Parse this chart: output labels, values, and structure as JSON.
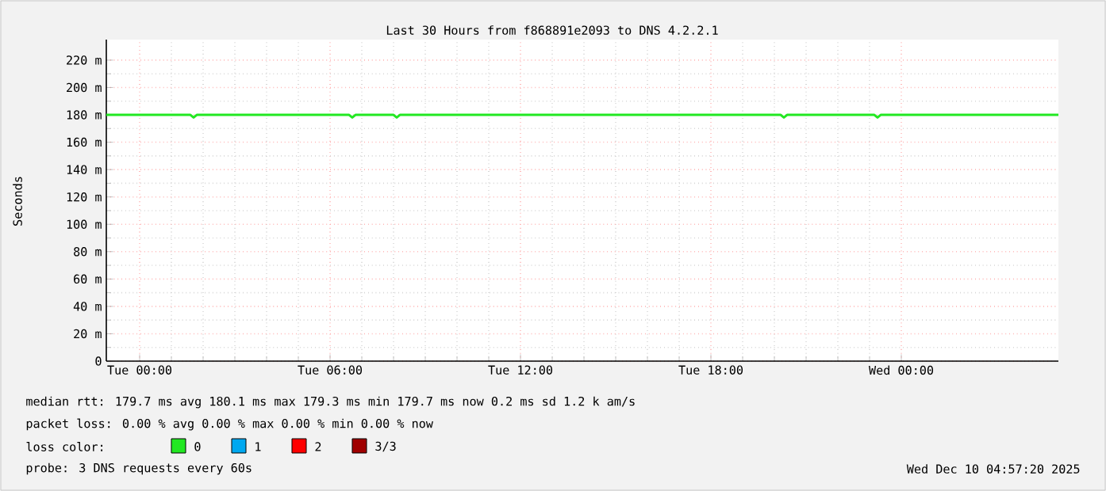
{
  "chart_data": {
    "type": "line",
    "title": "Last 30 Hours from f868891e2093 to DNS 4.2.2.1",
    "ylabel": "Seconds",
    "legend_title": "loss color:",
    "legend": "bottom",
    "grid": true,
    "xlim": [
      "2025-12-08T22:57",
      "2025-12-10T04:57"
    ],
    "xticks": [
      {
        "value": "2025-12-09T00:00",
        "label": "Tue 00:00"
      },
      {
        "value": "2025-12-09T06:00",
        "label": "Tue 06:00"
      },
      {
        "value": "2025-12-09T12:00",
        "label": "Tue 12:00"
      },
      {
        "value": "2025-12-09T18:00",
        "label": "Tue 18:00"
      },
      {
        "value": "2025-12-10T00:00",
        "label": "Wed 00:00"
      }
    ],
    "ylim": [
      0,
      235
    ],
    "yticks": [
      {
        "value": 0,
        "label": "0"
      },
      {
        "value": 20,
        "label": "20 m"
      },
      {
        "value": 40,
        "label": "40 m"
      },
      {
        "value": 60,
        "label": "60 m"
      },
      {
        "value": 80,
        "label": "80 m"
      },
      {
        "value": 100,
        "label": "100 m"
      },
      {
        "value": 120,
        "label": "120 m"
      },
      {
        "value": 140,
        "label": "140 m"
      },
      {
        "value": 160,
        "label": "160 m"
      },
      {
        "value": 180,
        "label": "180 m"
      },
      {
        "value": 200,
        "label": "200 m"
      },
      {
        "value": 220,
        "label": "220 m"
      }
    ],
    "x": [
      "2025-12-08T22:57",
      "2025-12-09T01:36",
      "2025-12-09T01:42",
      "2025-12-09T01:48",
      "2025-12-09T06:36",
      "2025-12-09T06:42",
      "2025-12-09T06:48",
      "2025-12-09T08:00",
      "2025-12-09T08:06",
      "2025-12-09T08:12",
      "2025-12-09T20:12",
      "2025-12-09T20:18",
      "2025-12-09T20:24",
      "2025-12-09T23:09",
      "2025-12-09T23:15",
      "2025-12-09T23:21",
      "2025-12-10T04:57"
    ],
    "series": [
      {
        "name": "0",
        "color": "#22e822",
        "values": [
          180,
          180,
          178,
          180,
          180,
          178,
          180,
          180,
          178,
          180,
          180,
          178,
          180,
          180,
          178,
          180,
          180
        ]
      },
      {
        "name": "1",
        "color": "#00a8f0",
        "values": [
          null,
          null,
          null,
          null,
          null,
          null,
          null,
          null,
          null,
          null,
          null,
          null,
          null,
          null,
          null,
          null,
          null
        ]
      },
      {
        "name": "2",
        "color": "#ff0000",
        "values": [
          null,
          null,
          null,
          null,
          null,
          null,
          null,
          null,
          null,
          null,
          null,
          null,
          null,
          null,
          null,
          null,
          null
        ]
      },
      {
        "name": "3/3",
        "color": "#a00000",
        "values": [
          null,
          null,
          null,
          null,
          null,
          null,
          null,
          null,
          null,
          null,
          null,
          null,
          null,
          null,
          null,
          null,
          null
        ]
      }
    ],
    "annotations": [
      "median rtt:  179.7 ms avg  180.1 ms max  179.3 ms min  179.7 ms now  0.2 ms sd  1.2 k am/s",
      "packet loss: 0.00 % avg  0.00 % max  0.00 % min  0.00 % now",
      "probe:       3 DNS requests every 60s",
      "Wed Dec 10 04:57:20 2025"
    ]
  }
}
